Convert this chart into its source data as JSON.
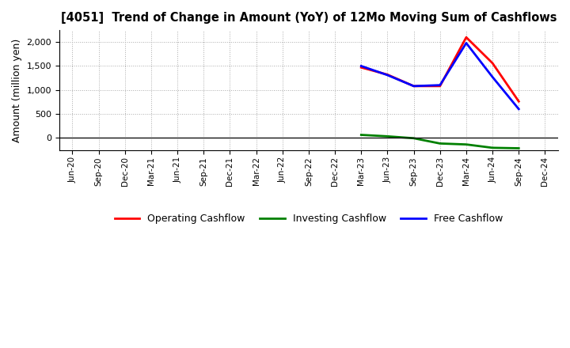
{
  "title": "[4051]  Trend of Change in Amount (YoY) of 12Mo Moving Sum of Cashflows",
  "ylabel": "Amount (million yen)",
  "x_labels": [
    "Jun-20",
    "Sep-20",
    "Dec-20",
    "Mar-21",
    "Jun-21",
    "Sep-21",
    "Dec-21",
    "Mar-22",
    "Jun-22",
    "Sep-22",
    "Dec-22",
    "Mar-23",
    "Jun-23",
    "Sep-23",
    "Dec-23",
    "Mar-24",
    "Jun-24",
    "Sep-24",
    "Dec-24"
  ],
  "operating": [
    null,
    null,
    null,
    null,
    null,
    null,
    null,
    null,
    null,
    null,
    null,
    1470,
    1320,
    1080,
    1080,
    2100,
    1560,
    760,
    null
  ],
  "investing": [
    null,
    null,
    null,
    null,
    null,
    null,
    null,
    null,
    null,
    null,
    null,
    60,
    30,
    -10,
    -120,
    -140,
    -210,
    -220,
    null
  ],
  "free": [
    null,
    null,
    null,
    null,
    null,
    null,
    null,
    null,
    null,
    null,
    null,
    1500,
    1310,
    1080,
    1100,
    1980,
    1270,
    600,
    null
  ],
  "op_color": "#ff0000",
  "inv_color": "#008000",
  "free_color": "#0000ff",
  "line_width": 2.0,
  "ylim": [
    -270,
    2250
  ],
  "yticks": [
    0,
    500,
    1000,
    1500,
    2000
  ],
  "background_color": "#ffffff",
  "grid_color": "#aaaaaa",
  "legend_labels": [
    "Operating Cashflow",
    "Investing Cashflow",
    "Free Cashflow"
  ]
}
